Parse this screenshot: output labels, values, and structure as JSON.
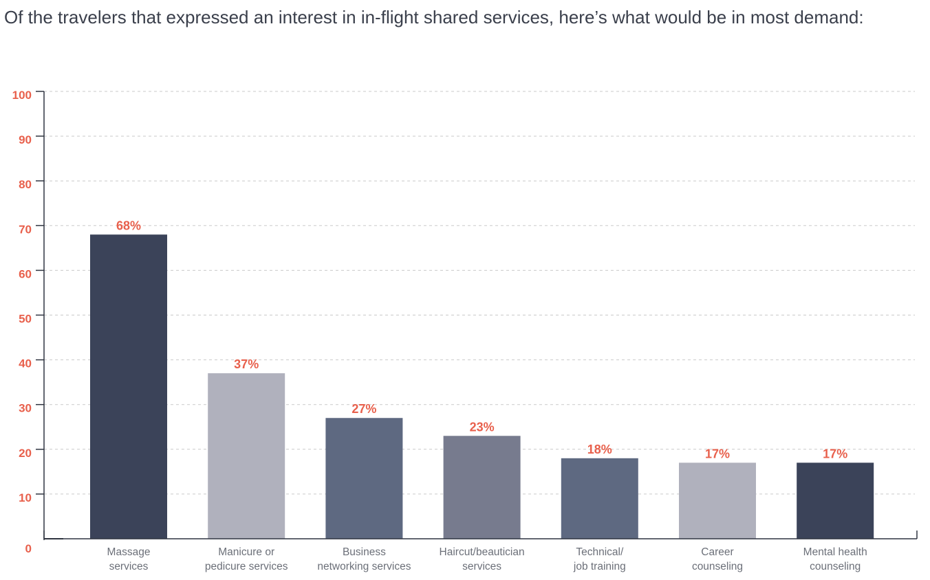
{
  "title": "Of the travelers that expressed an interest in in-flight shared services, here’s what would be in most demand:",
  "chart_data": {
    "type": "bar",
    "title": "Of the travelers that expressed an interest in in-flight shared services, here’s what would be in most demand:",
    "categories": [
      [
        "Massage",
        "services"
      ],
      [
        "Manicure or",
        "pedicure services"
      ],
      [
        "Business",
        "networking services"
      ],
      [
        "Haircut/beautician",
        "services"
      ],
      [
        "Technical/",
        "job training"
      ],
      [
        "Career",
        "counseling"
      ],
      [
        "Mental health",
        "counseling"
      ]
    ],
    "values": [
      68,
      37,
      27,
      23,
      18,
      17,
      17
    ],
    "value_labels": [
      "68%",
      "37%",
      "27%",
      "23%",
      "18%",
      "17%",
      "17%"
    ],
    "bar_colors": [
      "#3b4359",
      "#b0b1bd",
      "#5e6981",
      "#777b8e",
      "#5e6981",
      "#b0b1bd",
      "#3b4359"
    ],
    "yticks": [
      "0",
      "10",
      "20",
      "30",
      "40",
      "50",
      "60",
      "70",
      "80",
      "90",
      "100"
    ],
    "ylim": [
      0,
      100
    ],
    "grid": true,
    "xlabel": "",
    "ylabel": "",
    "colors": {
      "accent": "#e8604c",
      "axis": "#2f3440",
      "grid": "#c9c9c9",
      "label": "#6b6f78"
    }
  }
}
